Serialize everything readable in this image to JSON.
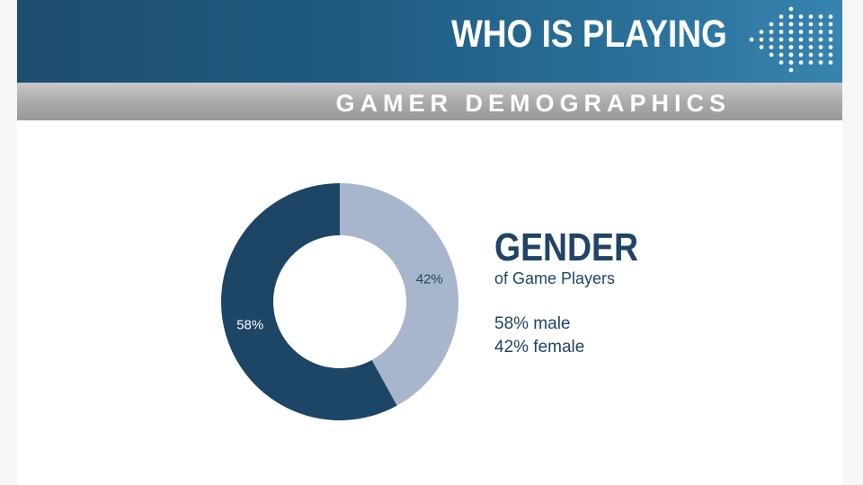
{
  "header": {
    "title": "WHO IS PLAYING",
    "subtitle": "GAMER DEMOGRAPHICS",
    "arrow_icon": "dotted-arrow-icon"
  },
  "colors": {
    "banner_dark": "#1d4d6f",
    "banner_light": "#3784b0",
    "male": "#1d4566",
    "female": "#a7b6cc",
    "text": "#1f4466"
  },
  "legend": {
    "title": "GENDER",
    "subtitle": "of Game Players",
    "entries": [
      "58% male",
      "42% female"
    ]
  },
  "chart_data": {
    "type": "pie",
    "donut": true,
    "categories": [
      "male",
      "female"
    ],
    "values": [
      58,
      42
    ],
    "labels": [
      "58%",
      "42%"
    ],
    "colors": [
      "#1d4566",
      "#a7b6cc"
    ]
  }
}
